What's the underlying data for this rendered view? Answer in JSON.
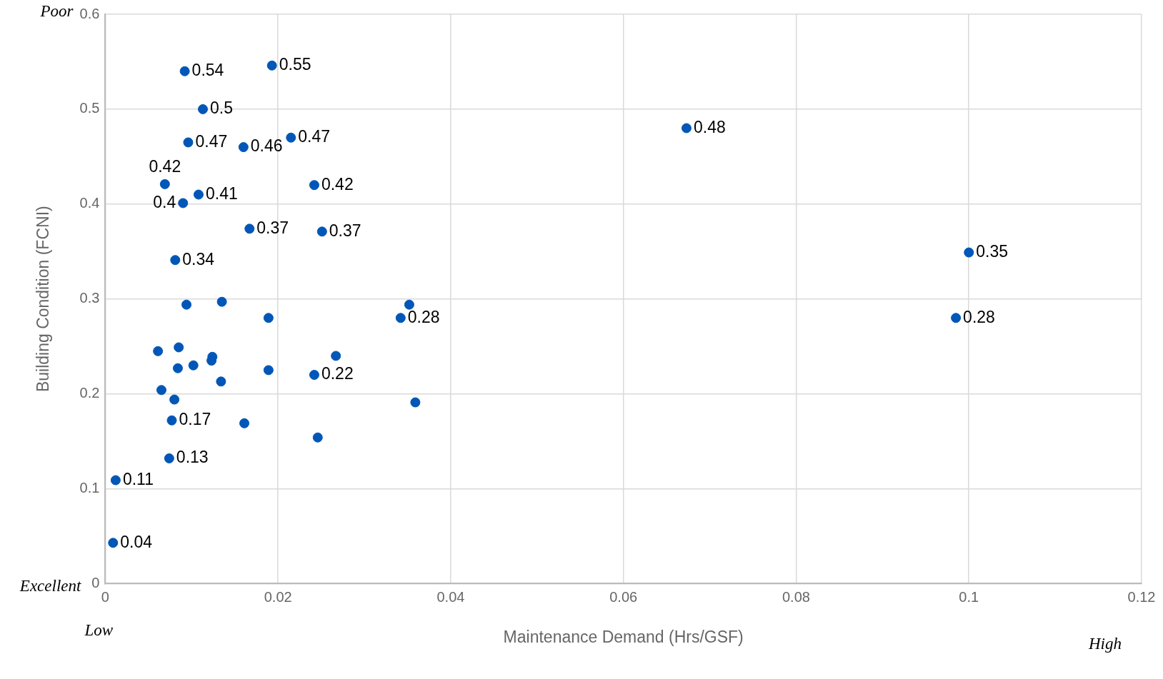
{
  "chart_data": {
    "type": "scatter",
    "xlabel": "Maintenance Demand (Hrs/GSF)",
    "ylabel": "Building Condition (FCNI)",
    "xlim": [
      0,
      0.12
    ],
    "xticks": [
      0,
      0.02,
      0.04,
      0.06,
      0.08,
      0.1,
      0.12
    ],
    "ylim": [
      0,
      0.6
    ],
    "yticks": [
      0,
      0.1,
      0.2,
      0.3,
      0.4,
      0.5,
      0.6
    ],
    "grid": true,
    "legend": false,
    "marker": "circle",
    "annotations": [
      "Poor",
      "Excellent",
      "Low",
      "High"
    ],
    "series": [
      {
        "color": "#0057b7",
        "x": [
          0.0092,
          0.0193,
          0.0113,
          0.0096,
          0.016,
          0.0215,
          0.0069,
          0.0242,
          0.0108,
          0.009,
          0.0167,
          0.0251,
          0.0081,
          0.0094,
          0.0135,
          0.0189,
          0.0352,
          0.0342,
          0.0061,
          0.0085,
          0.0124,
          0.0123,
          0.0084,
          0.0102,
          0.0189,
          0.0267,
          0.0242,
          0.0134,
          0.0065,
          0.008,
          0.0077,
          0.0161,
          0.0359,
          0.0246,
          0.0074,
          0.0012,
          0.0009,
          0.0673,
          0.1,
          0.0985
        ],
        "values": [
          0.54,
          0.546,
          0.5,
          0.465,
          0.46,
          0.47,
          0.421,
          0.42,
          0.41,
          0.401,
          0.374,
          0.371,
          0.341,
          0.294,
          0.297,
          0.28,
          0.294,
          0.28,
          0.245,
          0.249,
          0.239,
          0.235,
          0.227,
          0.23,
          0.225,
          0.24,
          0.22,
          0.213,
          0.204,
          0.194,
          0.172,
          0.169,
          0.191,
          0.154,
          0.132,
          0.109,
          0.043,
          0.48,
          0.349,
          0.28
        ],
        "value_labels": [
          "0.54",
          "0.55",
          "0.5",
          "0.47",
          "0.46",
          "0.47",
          "0.42",
          "0.42",
          "0.41",
          "0.4",
          "0.37",
          "0.37",
          "0.34",
          null,
          null,
          null,
          null,
          "0.28",
          null,
          null,
          null,
          null,
          null,
          null,
          null,
          null,
          "0.22",
          null,
          null,
          null,
          "0.17",
          null,
          null,
          null,
          "0.13",
          "0.11",
          "0.04",
          "0.48",
          "0.35",
          "0.28"
        ]
      }
    ]
  }
}
